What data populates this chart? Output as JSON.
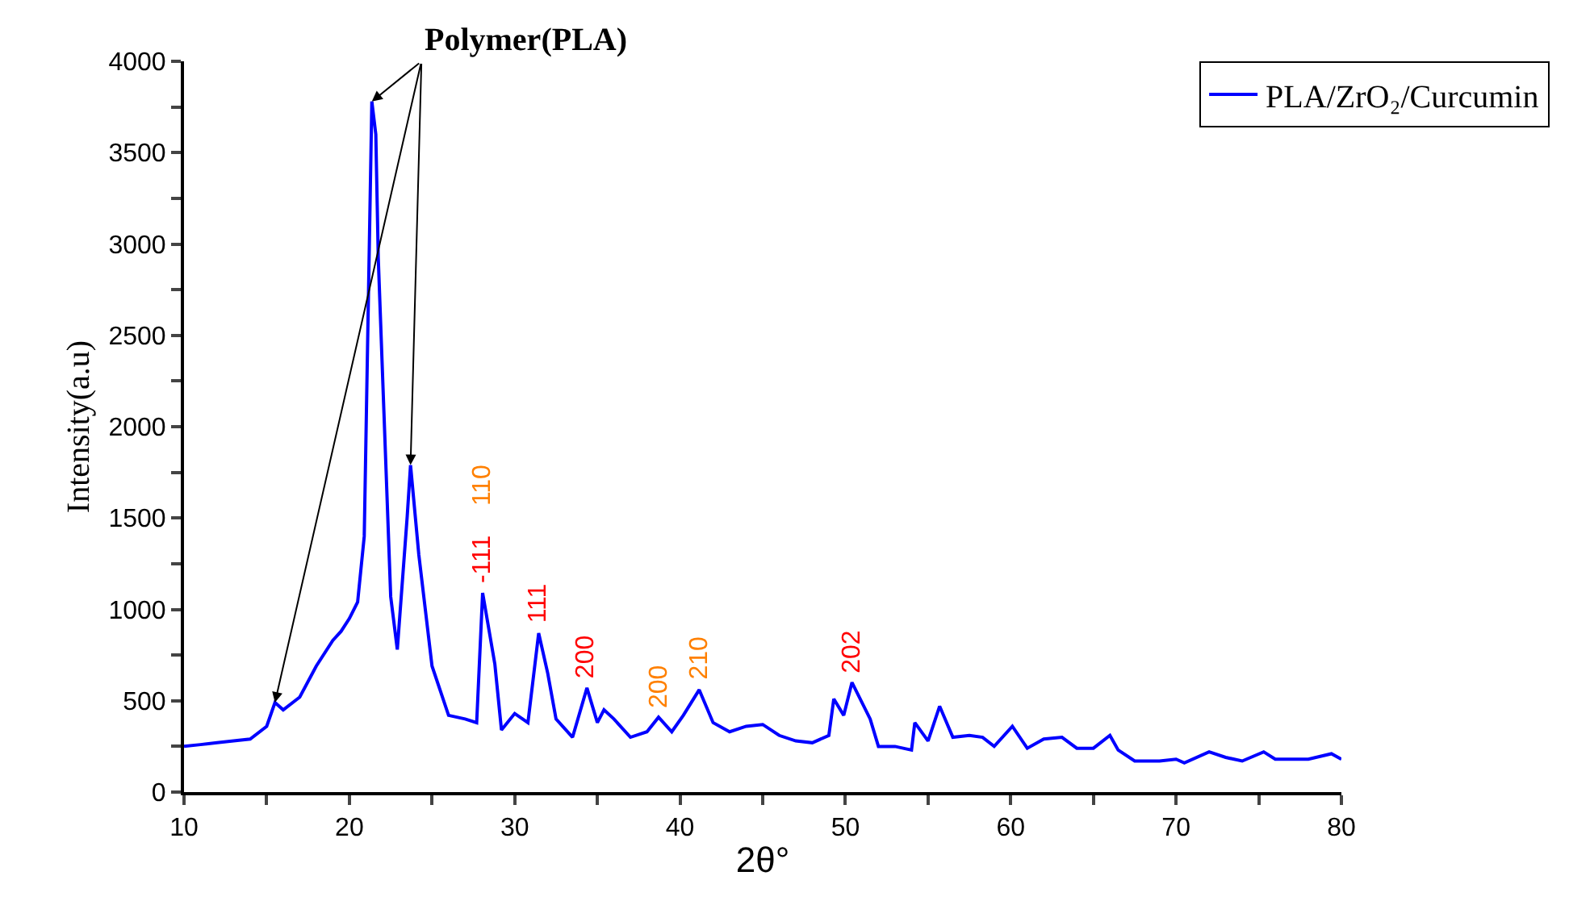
{
  "chart_data": {
    "type": "line",
    "xlabel": "2θ°",
    "ylabel": "Intensity(a.u)",
    "x": [
      10,
      11,
      12,
      13,
      14,
      15,
      15.5,
      16,
      17,
      18,
      19,
      19.5,
      20,
      20.5,
      20.9,
      21.36,
      21.6,
      21.75,
      22.5,
      22.9,
      23.5,
      23.7,
      24.2,
      25,
      26,
      27,
      27.7,
      28.06,
      28.8,
      29.2,
      30,
      30.8,
      31.45,
      32,
      32.5,
      33.5,
      34.37,
      35,
      35.4,
      36,
      37,
      38,
      38.7,
      39.5,
      40.2,
      41.16,
      42,
      43,
      44,
      45,
      46,
      47,
      48,
      49,
      49.3,
      49.9,
      50.4,
      51.5,
      52,
      53,
      54,
      54.2,
      55,
      55.7,
      56.5,
      57.5,
      58.3,
      59,
      60.1,
      61,
      62,
      63.1,
      64,
      65,
      66,
      66.5,
      67.5,
      69,
      70,
      70.5,
      72,
      73,
      74,
      75.3,
      76,
      78,
      79.4,
      80
    ],
    "series": [
      {
        "name": "PLA/ZrO₂/Curcumin",
        "color": "#0000ff",
        "values": [
          250,
          260,
          270,
          280,
          290,
          360,
          490,
          450,
          520,
          690,
          830,
          880,
          950,
          1040,
          1400,
          3780,
          3600,
          2920,
          1070,
          780,
          1510,
          1790,
          1300,
          690,
          420,
          400,
          380,
          1090,
          700,
          340,
          430,
          380,
          870,
          650,
          400,
          300,
          570,
          380,
          450,
          400,
          300,
          330,
          410,
          330,
          420,
          560,
          380,
          330,
          360,
          370,
          310,
          280,
          270,
          310,
          510,
          420,
          600,
          400,
          250,
          250,
          230,
          380,
          280,
          470,
          300,
          310,
          300,
          250,
          360,
          240,
          290,
          300,
          240,
          240,
          310,
          230,
          170,
          170,
          180,
          160,
          220,
          190,
          170,
          220,
          180,
          180,
          210,
          180
        ]
      }
    ],
    "xlim": [
      10,
      80
    ],
    "ylim": [
      0,
      4000
    ],
    "xticks": [
      10,
      {
        "value": 15,
        "label": null
      },
      20,
      {
        "value": 25,
        "label": null
      },
      30,
      {
        "value": 35,
        "label": null
      },
      40,
      {
        "value": 45,
        "label": null
      },
      50,
      {
        "value": 55,
        "label": null
      },
      60,
      {
        "value": 65,
        "label": null
      },
      70,
      {
        "value": 75,
        "label": null
      },
      80
    ],
    "yticks": [
      0,
      {
        "value": 250,
        "label": null
      },
      500,
      {
        "value": 750,
        "label": null
      },
      1000,
      {
        "value": 1250,
        "label": null
      },
      1500,
      {
        "value": 1750,
        "label": null
      },
      2000,
      {
        "value": 2250,
        "label": null
      },
      2500,
      {
        "value": 2750,
        "label": null
      },
      3000,
      {
        "value": 3250,
        "label": null
      },
      3500,
      {
        "value": 3750,
        "label": null
      },
      4000
    ],
    "annotations": [
      {
        "text": "Polymer(PLA)",
        "x": 21.36,
        "y": 3780
      },
      {
        "text": "-111",
        "x": 28.06,
        "y": 1090
      },
      "110",
      {
        "text": "111",
        "x": 31.45,
        "y": 870
      },
      {
        "text": "200",
        "x": 34.37,
        "y": 570
      },
      {
        "text": "200",
        "x": 38.7,
        "y": 410
      },
      {
        "text": "210",
        "x": 41.16,
        "y": 560
      },
      {
        "text": "202",
        "x": 50.4,
        "y": 600
      }
    ],
    "legend": "top right",
    "marker": "none",
    "line_style": "solid"
  }
}
